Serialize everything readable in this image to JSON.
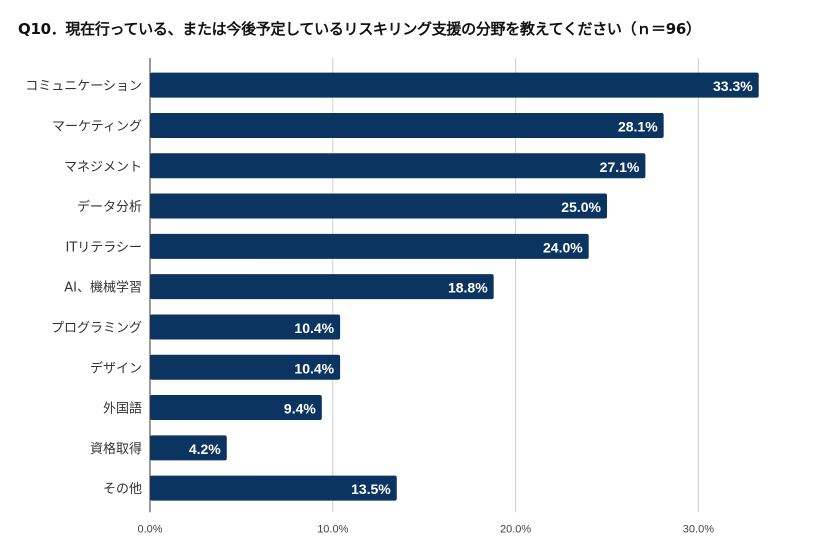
{
  "chart_data": {
    "type": "bar",
    "orientation": "horizontal",
    "title": "Q10．現在行っている、または今後予定しているリスキリング支援の分野を教えてください（ｎ＝96）",
    "categories": [
      "コミュニケーション",
      "マーケティング",
      "マネジメント",
      "データ分析",
      "ITリテラシー",
      "AI、機械学習",
      "プログラミング",
      "デザイン",
      "外国語",
      "資格取得",
      "その他"
    ],
    "values": [
      33.3,
      28.1,
      27.1,
      25.0,
      24.0,
      18.8,
      10.4,
      10.4,
      9.4,
      4.2,
      13.5
    ],
    "data_labels": [
      "33.3%",
      "28.1%",
      "27.1%",
      "25.0%",
      "24.0%",
      "18.8%",
      "10.4%",
      "10.4%",
      "9.4%",
      "4.2%",
      "13.5%"
    ],
    "xticks": [
      "0.0%",
      "10.0%",
      "20.0%",
      "30.0%"
    ],
    "xlim": [
      0,
      35
    ],
    "xlabel": "",
    "ylabel": "",
    "grid": true,
    "bar_color": "#0b3560"
  }
}
